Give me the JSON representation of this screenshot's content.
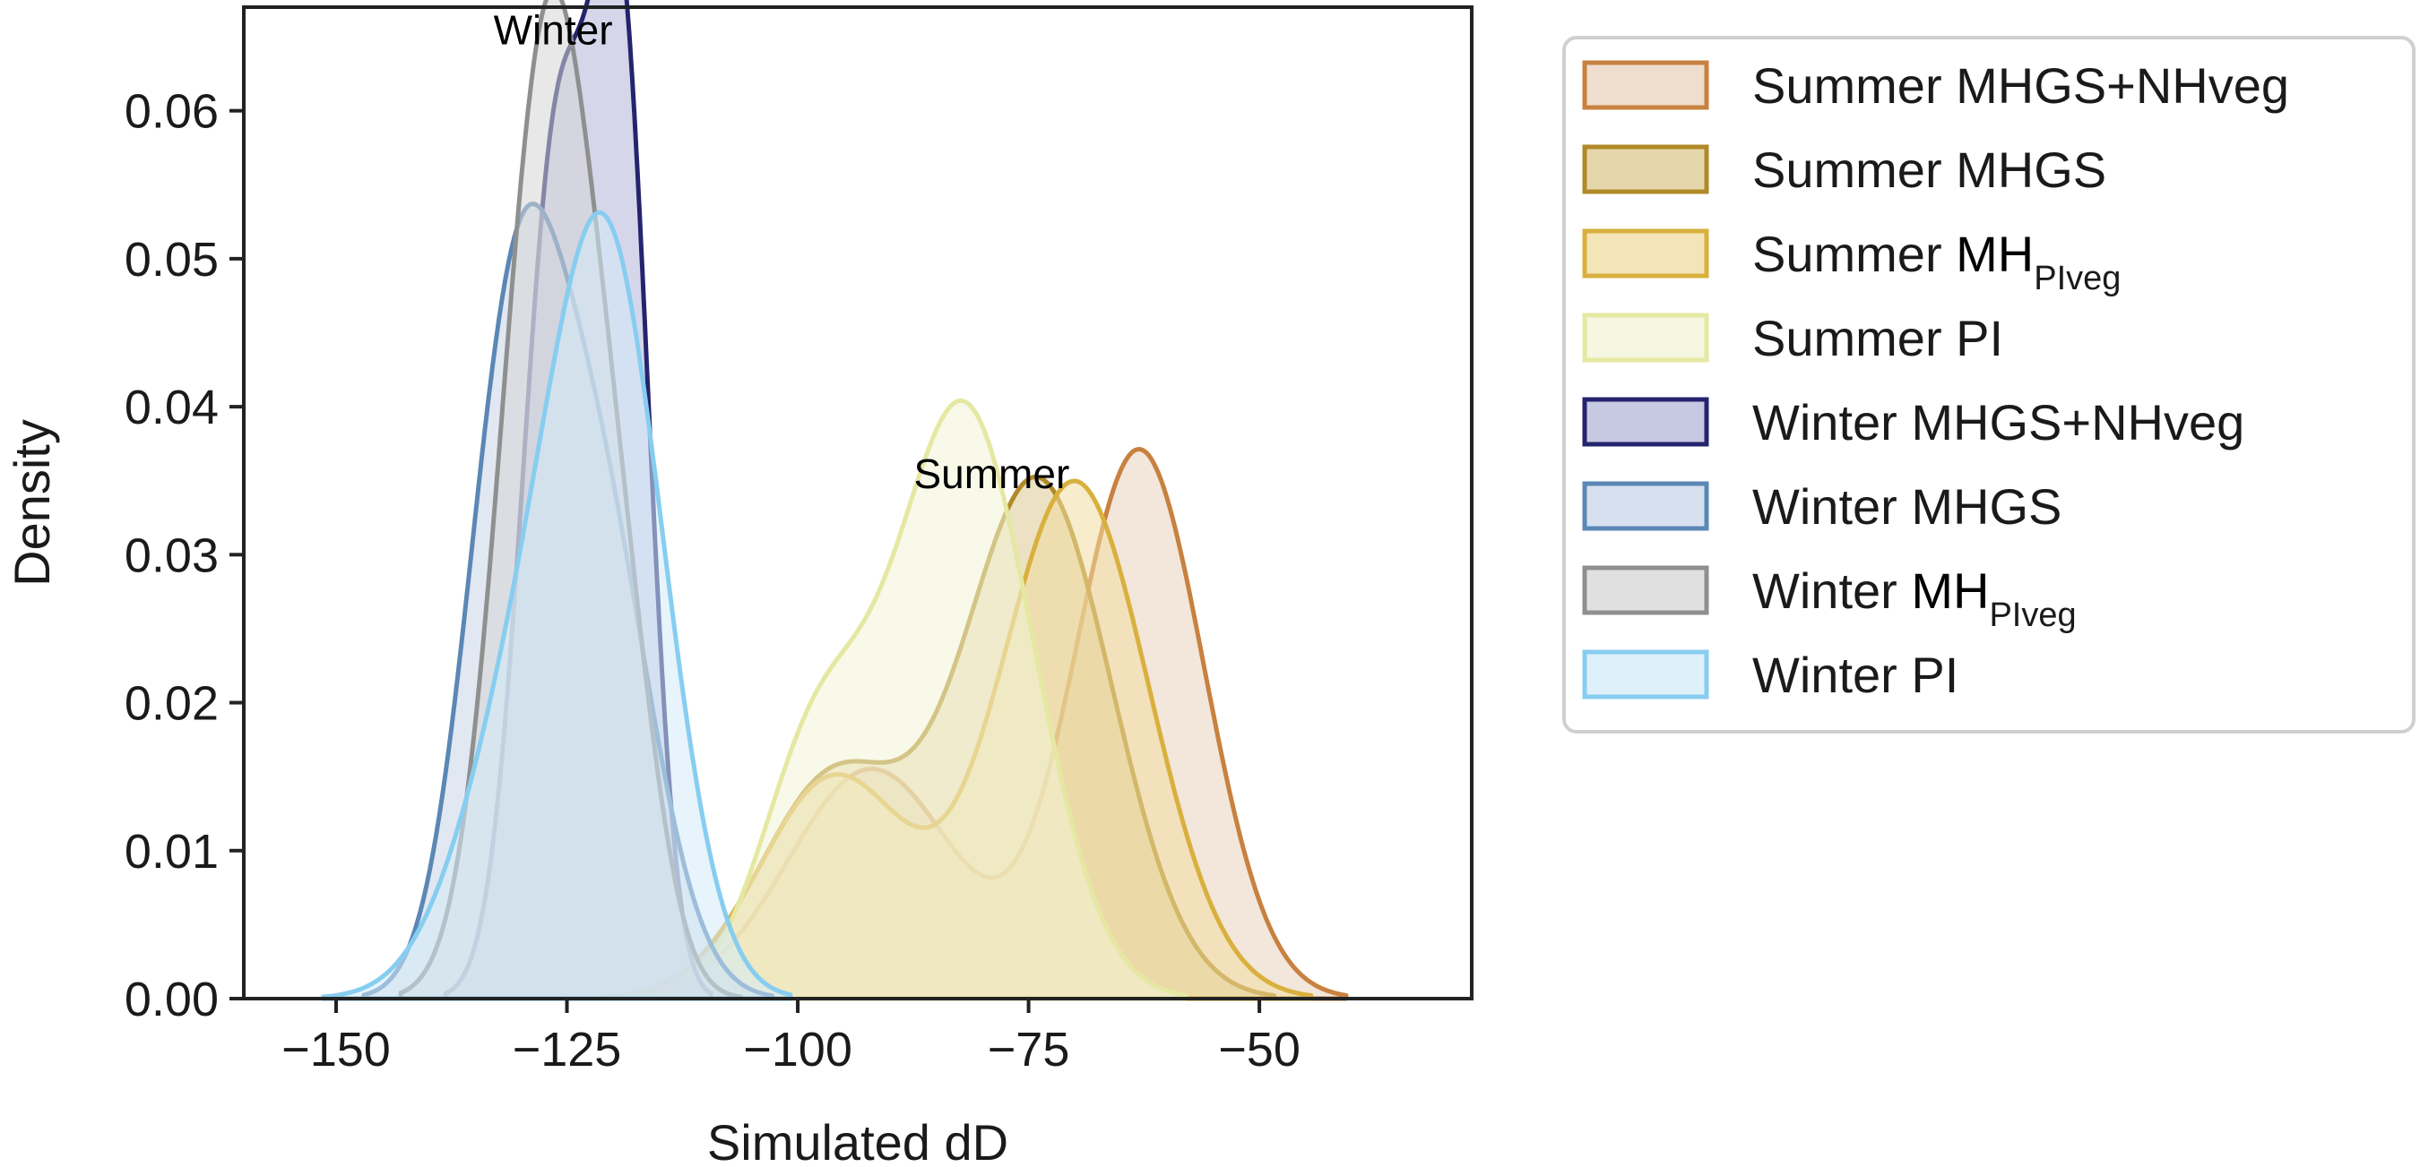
{
  "chart_data": {
    "type": "area",
    "title": "",
    "xlabel": "Simulated dD",
    "ylabel": "Density",
    "xlim": [
      -160,
      -27
    ],
    "ylim": [
      0,
      0.067
    ],
    "xticks": [
      {
        "value": -150,
        "label": "−150"
      },
      {
        "value": -125,
        "label": "−125"
      },
      {
        "value": -100,
        "label": "−100"
      },
      {
        "value": -75,
        "label": "−75"
      },
      {
        "value": -50,
        "label": "−50"
      }
    ],
    "yticks": [
      {
        "value": 0.0,
        "label": "0.00"
      },
      {
        "value": 0.01,
        "label": "0.01"
      },
      {
        "value": 0.02,
        "label": "0.02"
      },
      {
        "value": 0.03,
        "label": "0.03"
      },
      {
        "value": 0.04,
        "label": "0.04"
      },
      {
        "value": 0.05,
        "label": "0.05"
      },
      {
        "value": 0.06,
        "label": "0.06"
      }
    ],
    "annotations": [
      {
        "text": "Winter",
        "x": -126.5,
        "y": 0.0645
      },
      {
        "text": "Summer",
        "x": -79,
        "y": 0.0345
      }
    ],
    "legend_position": "outside-right",
    "series": [
      {
        "name": "Summer MHGS+NHveg",
        "label_prefix": "Summer ",
        "label_main": "MHGS+NHveg",
        "label_sub": "",
        "color": "#c8813f",
        "fill": "#e9d2bd",
        "components": [
          {
            "mu": -92,
            "sigma": 9,
            "weight": 0.35
          },
          {
            "mu": -63,
            "sigma": 7,
            "weight": 0.65
          }
        ]
      },
      {
        "name": "Summer MHGS",
        "label_prefix": "Summer ",
        "label_main": "MHGS",
        "label_sub": "",
        "color": "#b08a28",
        "fill": "#ddc88f",
        "components": [
          {
            "mu": -96,
            "sigma": 8,
            "weight": 0.3
          },
          {
            "mu": -74,
            "sigma": 8,
            "weight": 0.7
          }
        ]
      },
      {
        "name": "Summer MHPIveg",
        "label_prefix": "Summer ",
        "label_main": "MH",
        "label_sub": "PIveg",
        "color": "#d9b03e",
        "fill": "#f0dca0",
        "components": [
          {
            "mu": -96,
            "sigma": 8,
            "weight": 0.3
          },
          {
            "mu": -70,
            "sigma": 8,
            "weight": 0.7
          }
        ]
      },
      {
        "name": "Summer PI",
        "label_prefix": "Summer ",
        "label_main": "PI",
        "label_sub": "",
        "color": "#e5e8a2",
        "fill": "#f2f4d6",
        "components": [
          {
            "mu": -98,
            "sigma": 6,
            "weight": 0.25
          },
          {
            "mu": -82,
            "sigma": 7.5,
            "weight": 0.75
          }
        ]
      },
      {
        "name": "Winter MHGS+NHveg",
        "label_prefix": "Winter ",
        "label_main": "MHGS+NHveg",
        "label_sub": "",
        "color": "#24246e",
        "fill": "#b4b5d8",
        "components": [
          {
            "mu": -126,
            "sigma": 3.8,
            "weight": 0.55
          },
          {
            "mu": -119,
            "sigma": 3,
            "weight": 0.45
          }
        ]
      },
      {
        "name": "Winter MHGS",
        "label_prefix": "Winter ",
        "label_main": "MHGS",
        "label_sub": "",
        "color": "#5b87b5",
        "fill": "#c8d6e8",
        "components": [
          {
            "mu": -131,
            "sigma": 5,
            "weight": 0.5
          },
          {
            "mu": -122,
            "sigma": 6,
            "weight": 0.5
          }
        ]
      },
      {
        "name": "Winter MHPIveg",
        "label_prefix": "Winter ",
        "label_main": "MH",
        "label_sub": "PIveg",
        "color": "#8f8f8f",
        "fill": "#d6d6d6",
        "components": [
          {
            "mu": -127,
            "sigma": 5,
            "weight": 0.82
          },
          {
            "mu": -119,
            "sigma": 4,
            "weight": 0.18
          }
        ]
      },
      {
        "name": "Winter PI",
        "label_prefix": "Winter ",
        "label_main": "PI",
        "label_sub": "",
        "color": "#87cdf0",
        "fill": "#d3ebf8",
        "components": [
          {
            "mu": -120,
            "sigma": 6,
            "weight": 0.65
          },
          {
            "mu": -129,
            "sigma": 7,
            "weight": 0.35
          }
        ]
      }
    ]
  }
}
